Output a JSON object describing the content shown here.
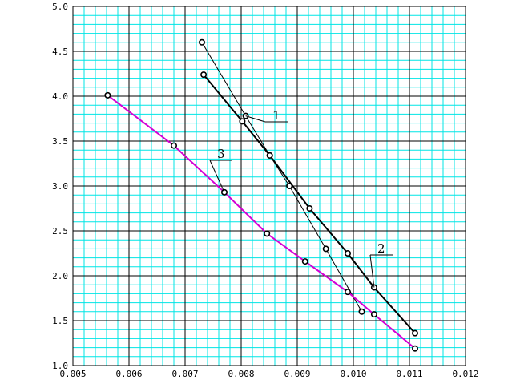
{
  "chart_data": {
    "type": "scatter",
    "title": "",
    "xlabel": "",
    "ylabel": "",
    "xlim": [
      0.005,
      0.012
    ],
    "ylim": [
      1.0,
      5.0
    ],
    "x_ticks": [
      "0.005",
      "0.006",
      "0.007",
      "0.008",
      "0.009",
      "0.010",
      "0.011",
      "0.012"
    ],
    "y_ticks": [
      "5.0",
      "4.5",
      "4.0",
      "3.5",
      "3.0",
      "2.5",
      "2.0",
      "1.5",
      "1.0"
    ],
    "grid": true,
    "colors": {
      "minor_grid": "#00e5e5",
      "major_grid": "#000000",
      "series_1": "#000000",
      "series_2": "#000000",
      "series_3": "#d400d4"
    },
    "series": [
      {
        "label": "1",
        "x": [
          0.0073,
          0.00808,
          0.00851,
          0.00886,
          0.00951,
          0.01015
        ],
        "y": [
          4.6,
          3.78,
          3.34,
          3.0,
          2.3,
          1.6
        ]
      },
      {
        "label": "2",
        "x": [
          0.00733,
          0.00802,
          0.00851,
          0.00922,
          0.0099,
          0.01037,
          0.0111
        ],
        "y": [
          4.24,
          3.72,
          3.34,
          2.75,
          2.25,
          1.87,
          1.36
        ]
      },
      {
        "label": "3",
        "x": [
          0.00562,
          0.0068,
          0.0077,
          0.00846,
          0.00914,
          0.0099,
          0.01037,
          0.0111
        ],
        "y": [
          4.01,
          3.45,
          2.93,
          2.47,
          2.16,
          1.82,
          1.57,
          1.19
        ]
      }
    ],
    "annotations": [
      {
        "text": "1",
        "series": 0,
        "anchor": [
          0.00808,
          3.78
        ]
      },
      {
        "text": "2",
        "series": 1,
        "anchor": [
          0.01037,
          1.87
        ]
      },
      {
        "text": "3",
        "series": 2,
        "anchor": [
          0.0077,
          2.93
        ]
      }
    ]
  }
}
